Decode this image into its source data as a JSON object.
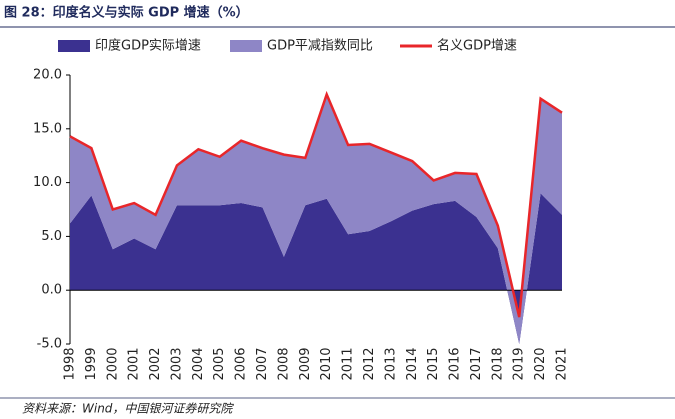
{
  "chart_data": {
    "type": "stacked-area-line",
    "title": "图 28：印度名义与实际 GDP 增速（%）",
    "source": "资料来源：Wind，中国银河证券研究院",
    "categories": [
      "1998",
      "1999",
      "2000",
      "2001",
      "2002",
      "2003",
      "2004",
      "2005",
      "2006",
      "2007",
      "2008",
      "2009",
      "2010",
      "2011",
      "2012",
      "2013",
      "2014",
      "2015",
      "2016",
      "2017",
      "2018",
      "2019",
      "2020",
      "2021"
    ],
    "series": [
      {
        "name": "印度GDP实际增速",
        "kind": "area",
        "color": "#3b3190",
        "values": [
          6.2,
          8.8,
          3.8,
          4.8,
          3.8,
          7.9,
          7.9,
          7.9,
          8.1,
          7.7,
          3.1,
          7.9,
          8.5,
          5.2,
          5.5,
          6.4,
          7.4,
          8.0,
          8.3,
          6.8,
          3.9,
          -5.0,
          9.0,
          7.0
        ]
      },
      {
        "name": "GDP平减指数同比",
        "kind": "area",
        "color": "#8e86c6",
        "values": [
          8.1,
          4.4,
          3.7,
          3.3,
          3.2,
          3.7,
          5.2,
          4.5,
          5.8,
          5.5,
          9.5,
          4.4,
          9.7,
          8.3,
          8.1,
          6.4,
          4.6,
          2.2,
          2.6,
          4.0,
          2.1,
          2.5,
          8.8,
          9.5
        ]
      },
      {
        "name": "名义GDP增速",
        "kind": "line",
        "color": "#e8262a",
        "values": [
          14.3,
          13.2,
          7.5,
          8.1,
          7.0,
          11.6,
          13.1,
          12.4,
          13.9,
          13.2,
          12.6,
          12.3,
          18.2,
          13.5,
          13.6,
          12.8,
          12.0,
          10.2,
          10.9,
          10.8,
          6.0,
          -2.5,
          17.8,
          16.5
        ]
      }
    ],
    "ylim": [
      -5,
      20
    ],
    "yticks": [
      {
        "value": -5,
        "label": "-5.0"
      },
      {
        "value": 0,
        "label": "0.0"
      },
      {
        "value": 5,
        "label": "5.0"
      },
      {
        "value": 10,
        "label": "10.0"
      },
      {
        "value": 15,
        "label": "15.0"
      },
      {
        "value": 20,
        "label": "20.0"
      }
    ]
  }
}
